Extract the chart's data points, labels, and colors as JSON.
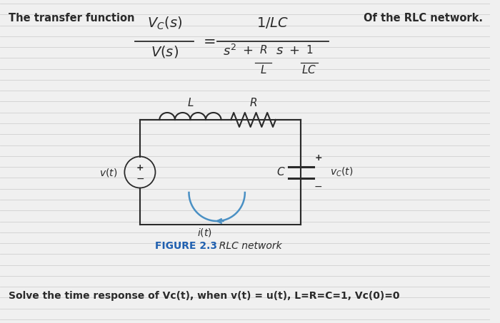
{
  "title_text": "The transfer function",
  "of_rlc_text": "Of the RLC network.",
  "figure_label": "FIGURE 2.3",
  "figure_caption": "  RLC network",
  "bottom_text": "Solve the time response of Vc(t), when v(t) = u(t), L=R=C=1, Vc(0)=0",
  "bg_color": "#f0f0f0",
  "circuit_color": "#4a90c4",
  "line_color": "#2a2a2a",
  "figure_label_color": "#2060b0",
  "ruled_line_color": "#d0d0d0"
}
